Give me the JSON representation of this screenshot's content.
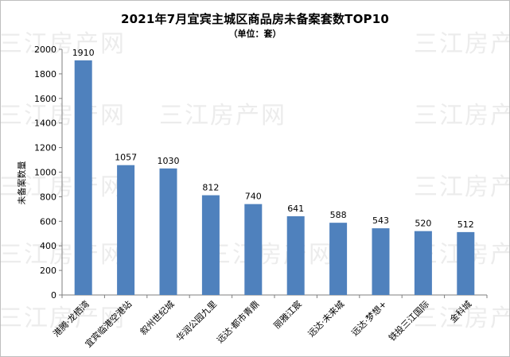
{
  "chart_data": {
    "type": "bar",
    "title": "2021年7月宜宾主城区商品房未备案套数TOP10",
    "subtitle": "（单位：套）",
    "ylabel": "未备案数量",
    "xlabel": "",
    "ylim": [
      0,
      2000
    ],
    "yticks": [
      0,
      200,
      400,
      600,
      800,
      1000,
      1200,
      1400,
      1600,
      1800,
      2000
    ],
    "categories": [
      "港腾·龙栖湾",
      "宜宾临港空港站",
      "叙州世纪城",
      "华润公园九里",
      "远达·都市青鼎",
      "丽雅江宸",
      "远达·未来城",
      "远达·梦想+",
      "铁投三江国际",
      "金科城"
    ],
    "values": [
      1910,
      1057,
      1030,
      812,
      740,
      641,
      588,
      543,
      520,
      512
    ],
    "bar_color": "#4f81bd"
  },
  "watermark": "三江房产网"
}
